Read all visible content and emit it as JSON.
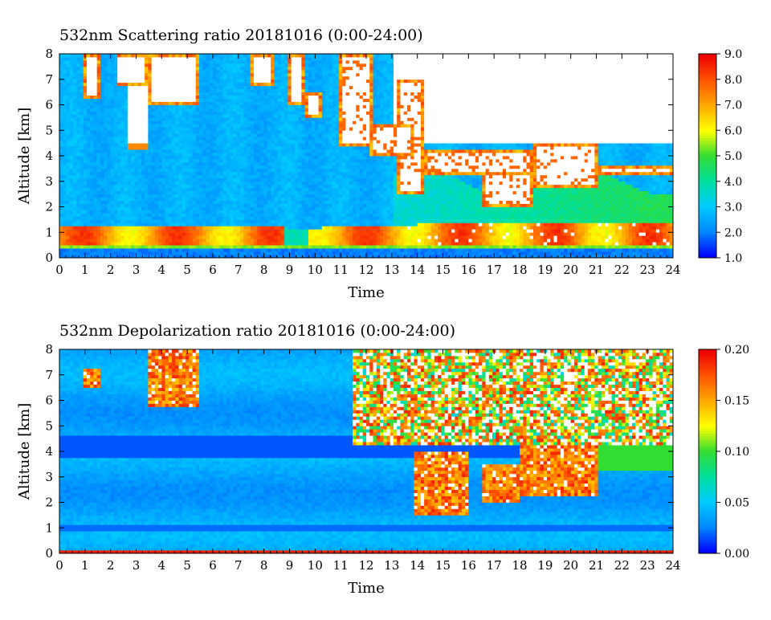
{
  "chart_data": [
    {
      "type": "heatmap",
      "title": "532nm Scattering ratio  20181016 (0:00-24:00)",
      "xlabel": "Time",
      "ylabel": "Altitude [km]",
      "xlim": [
        0,
        24
      ],
      "ylim": [
        0,
        8
      ],
      "x_ticks": [
        "0",
        "1",
        "2",
        "3",
        "4",
        "5",
        "6",
        "7",
        "8",
        "9",
        "10",
        "11",
        "12",
        "13",
        "14",
        "15",
        "16",
        "17",
        "18",
        "19",
        "20",
        "21",
        "22",
        "23",
        "24"
      ],
      "y_ticks": [
        "0",
        "1",
        "2",
        "3",
        "4",
        "5",
        "6",
        "7",
        "8"
      ],
      "colorbar": {
        "range": [
          1.0,
          9.0
        ],
        "ticks": [
          "1.0",
          "2.0",
          "3.0",
          "4.0",
          "5.0",
          "6.0",
          "7.0",
          "8.0",
          "9.0"
        ]
      },
      "grid": false
    },
    {
      "type": "heatmap",
      "title": "532nm Depolarization ratio  20181016 (0:00-24:00)",
      "xlabel": "Time",
      "ylabel": "Altitude [km]",
      "xlim": [
        0,
        24
      ],
      "ylim": [
        0,
        8
      ],
      "x_ticks": [
        "0",
        "1",
        "2",
        "3",
        "4",
        "5",
        "6",
        "7",
        "8",
        "9",
        "10",
        "11",
        "12",
        "13",
        "14",
        "15",
        "16",
        "17",
        "18",
        "19",
        "20",
        "21",
        "22",
        "23",
        "24"
      ],
      "y_ticks": [
        "0",
        "1",
        "2",
        "3",
        "4",
        "5",
        "6",
        "7",
        "8"
      ],
      "colorbar": {
        "range": [
          0.0,
          0.2
        ],
        "ticks": [
          "0.00",
          "0.05",
          "0.10",
          "0.15",
          "0.20"
        ]
      },
      "grid": false
    }
  ],
  "colors": {
    "scale": [
      "#0000ff",
      "#0088ff",
      "#00ccff",
      "#00e0a0",
      "#33dd33",
      "#ffff00",
      "#ffaa00",
      "#ff5500",
      "#ee0000"
    ],
    "missing": "#ffffff"
  }
}
